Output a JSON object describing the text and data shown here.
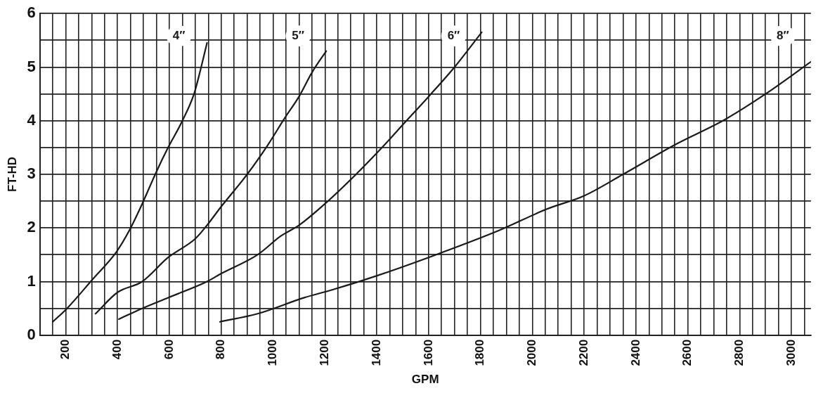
{
  "chart_data": {
    "type": "line",
    "xlabel": "GPM",
    "ylabel": "FT-HD",
    "xlim": [
      100,
      3075
    ],
    "ylim": [
      0,
      6
    ],
    "xticks": [
      {
        "value": 100,
        "label": null
      },
      {
        "value": 150,
        "label": null
      },
      200,
      {
        "value": 250,
        "label": null
      },
      {
        "value": 300,
        "label": null
      },
      {
        "value": 350,
        "label": null
      },
      400,
      {
        "value": 450,
        "label": null
      },
      {
        "value": 500,
        "label": null
      },
      {
        "value": 550,
        "label": null
      },
      600,
      {
        "value": 650,
        "label": null
      },
      {
        "value": 700,
        "label": null
      },
      {
        "value": 750,
        "label": null
      },
      800,
      {
        "value": 850,
        "label": null
      },
      {
        "value": 900,
        "label": null
      },
      {
        "value": 950,
        "label": null
      },
      1000,
      {
        "value": 1050,
        "label": null
      },
      {
        "value": 1100,
        "label": null
      },
      {
        "value": 1150,
        "label": null
      },
      1200,
      {
        "value": 1250,
        "label": null
      },
      {
        "value": 1300,
        "label": null
      },
      {
        "value": 1350,
        "label": null
      },
      1400,
      {
        "value": 1450,
        "label": null
      },
      {
        "value": 1500,
        "label": null
      },
      {
        "value": 1550,
        "label": null
      },
      1600,
      {
        "value": 1650,
        "label": null
      },
      {
        "value": 1700,
        "label": null
      },
      {
        "value": 1750,
        "label": null
      },
      1800,
      {
        "value": 1850,
        "label": null
      },
      {
        "value": 1900,
        "label": null
      },
      {
        "value": 1950,
        "label": null
      },
      2000,
      {
        "value": 2050,
        "label": null
      },
      {
        "value": 2100,
        "label": null
      },
      {
        "value": 2150,
        "label": null
      },
      2200,
      {
        "value": 2250,
        "label": null
      },
      {
        "value": 2300,
        "label": null
      },
      {
        "value": 2350,
        "label": null
      },
      2400,
      {
        "value": 2450,
        "label": null
      },
      {
        "value": 2500,
        "label": null
      },
      {
        "value": 2550,
        "label": null
      },
      2600,
      {
        "value": 2650,
        "label": null
      },
      {
        "value": 2700,
        "label": null
      },
      {
        "value": 2750,
        "label": null
      },
      2800,
      {
        "value": 2850,
        "label": null
      },
      {
        "value": 2900,
        "label": null
      },
      {
        "value": 2950,
        "label": null
      },
      3000,
      {
        "value": 3050,
        "label": null
      }
    ],
    "yticks": [
      0,
      {
        "value": 0.5,
        "label": null
      },
      1,
      {
        "value": 1.5,
        "label": null
      },
      2,
      {
        "value": 2.5,
        "label": null
      },
      3,
      {
        "value": 3.5,
        "label": null
      },
      4,
      {
        "value": 4.5,
        "label": null
      },
      5,
      {
        "value": 5.5,
        "label": null
      },
      6
    ],
    "grid": true,
    "legend": false,
    "marker": "none",
    "line_style": "solid",
    "series": [
      {
        "name": "4″",
        "color": "#1a1a1a",
        "x": [
          150,
          205,
          305,
          395,
          445,
          495,
          550,
          595,
          645,
          695,
          720,
          745
        ],
        "values": [
          0.25,
          0.5,
          1.05,
          1.55,
          1.95,
          2.45,
          3.05,
          3.5,
          3.95,
          4.5,
          4.95,
          5.45
        ]
      },
      {
        "name": "5″",
        "color": "#1a1a1a",
        "x": [
          315,
          400,
          495,
          595,
          700,
          745,
          800,
          900,
          980,
          1045,
          1100,
          1150,
          1205
        ],
        "values": [
          0.4,
          0.8,
          1.0,
          1.45,
          1.8,
          2.05,
          2.4,
          3.0,
          3.55,
          4.05,
          4.45,
          4.9,
          5.3
        ]
      },
      {
        "name": "6″",
        "color": "#1a1a1a",
        "x": [
          405,
          495,
          595,
          745,
          800,
          940,
          1030,
          1100,
          1200,
          1320,
          1430,
          1505,
          1600,
          1700,
          1805
        ],
        "values": [
          0.3,
          0.5,
          0.7,
          1.0,
          1.15,
          1.5,
          1.85,
          2.05,
          2.45,
          3.0,
          3.55,
          3.95,
          4.45,
          5.0,
          5.65
        ]
      },
      {
        "name": "8″",
        "color": "#1a1a1a",
        "x": [
          795,
          940,
          1120,
          1230,
          1395,
          1600,
          1870,
          2055,
          2200,
          2350,
          2550,
          2735,
          2900,
          3075
        ],
        "values": [
          0.25,
          0.4,
          0.7,
          0.85,
          1.1,
          1.45,
          1.95,
          2.35,
          2.6,
          3.0,
          3.55,
          4.0,
          4.5,
          5.1
        ]
      }
    ]
  }
}
